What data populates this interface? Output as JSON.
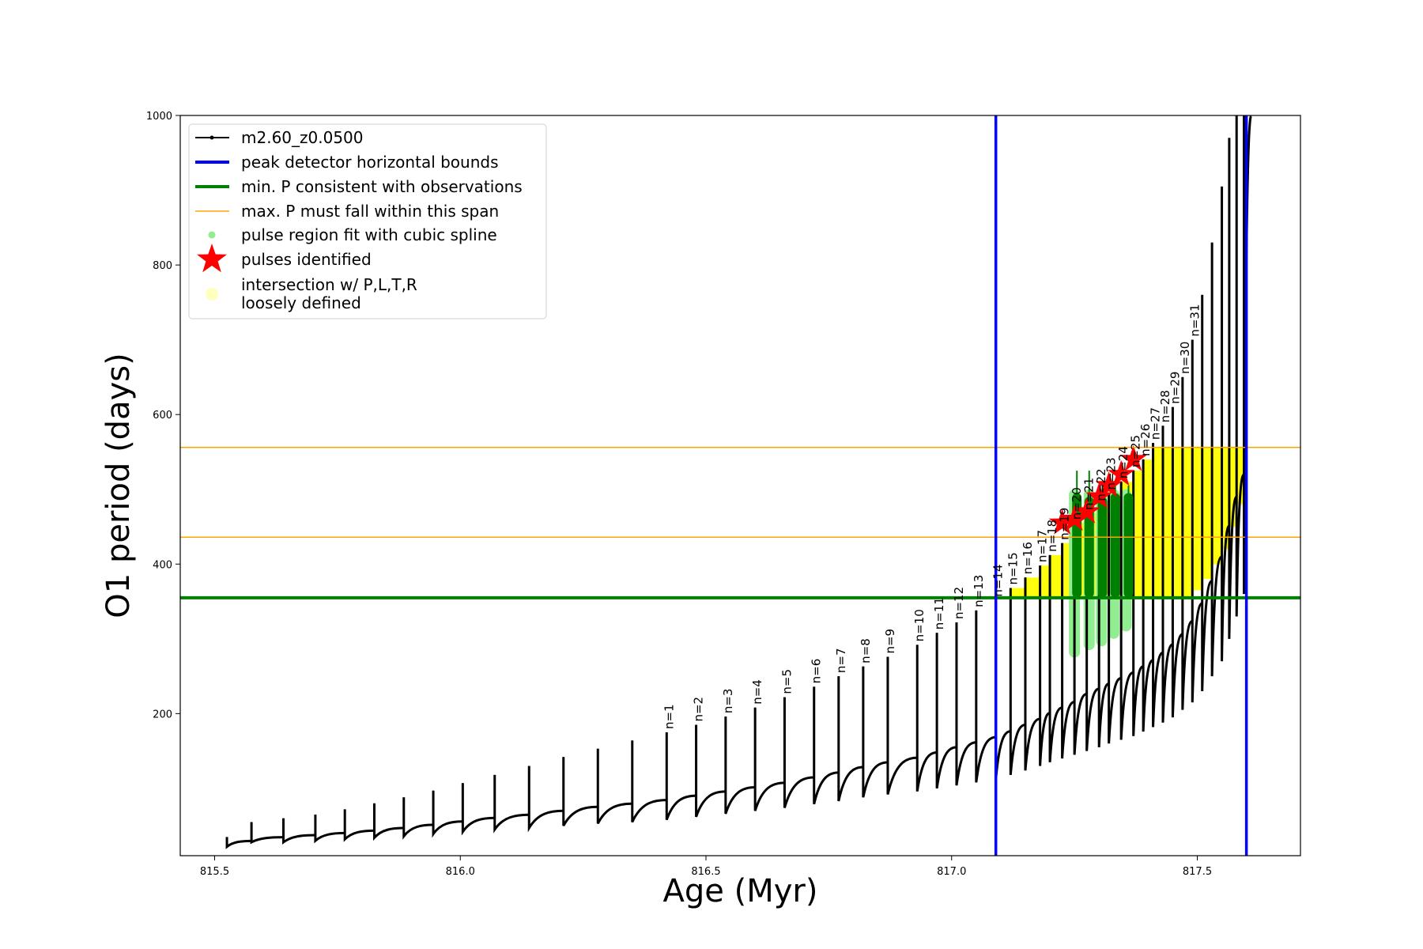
{
  "chart_data": {
    "type": "line",
    "xlabel": "Age (Myr)",
    "ylabel": "O1 period (days)",
    "xlim": [
      815.43,
      817.71
    ],
    "ylim": [
      10,
      1000
    ],
    "xticks": [
      815.5,
      816.0,
      816.5,
      817.0,
      817.5
    ],
    "xtick_labels": [
      "815.5",
      "816.0",
      "816.5",
      "817.0",
      "817.5"
    ],
    "yticks": [
      200,
      400,
      600,
      800,
      1000
    ],
    "ytick_labels": [
      "200",
      "400",
      "600",
      "800",
      "1000"
    ],
    "grid": false,
    "legend_position": "top-left",
    "legend": [
      {
        "label": "m2.60_z0.0500",
        "color": "#000000",
        "marker": "line-dot"
      },
      {
        "label": "peak detector horizontal bounds",
        "color": "#0000ff",
        "marker": "line"
      },
      {
        "label": "min. P consistent with observations",
        "color": "#008000",
        "marker": "line"
      },
      {
        "label": "max. P must fall within this span",
        "color": "#ffa500",
        "marker": "line"
      },
      {
        "label": "pulse region fit with cubic spline",
        "color": "#90ee90",
        "marker": "dot"
      },
      {
        "label": "pulses identified",
        "color": "#ff0000",
        "marker": "star"
      },
      {
        "label": "intersection w/ P,L,T,R",
        "label2": "loosely defined",
        "color": "#ffffc0",
        "marker": "circle"
      }
    ],
    "reference_lines": {
      "vertical_blue": [
        817.09,
        817.6
      ],
      "horizontal_green": 355,
      "horizontal_orange": [
        436,
        556
      ]
    },
    "pulse_series": {
      "name": "m2.60_z0.0500",
      "pulse_labels": [
        "n=1",
        "n=2",
        "n=3",
        "n=4",
        "n=5",
        "n=6",
        "n=7",
        "n=8",
        "n=9",
        "n=10",
        "n=11",
        "n=12",
        "n=13",
        "n=14",
        "n=15",
        "n=16",
        "n=17",
        "n=18",
        "n=19",
        "n=20",
        "n=21",
        "n=22",
        "n=23",
        "n=24",
        "n=25",
        "n=26",
        "n=27",
        "n=28",
        "n=29",
        "n=30",
        "n=31"
      ],
      "pulses": [
        [
          815.525,
          22,
          35
        ],
        [
          815.575,
          28,
          55
        ],
        [
          815.64,
          28,
          60
        ],
        [
          815.705,
          30,
          65
        ],
        [
          815.765,
          32,
          72
        ],
        [
          815.825,
          34,
          80
        ],
        [
          815.885,
          36,
          88
        ],
        [
          815.945,
          39,
          97
        ],
        [
          816.005,
          42,
          107
        ],
        [
          816.07,
          45,
          118
        ],
        [
          816.14,
          47,
          130
        ],
        [
          816.21,
          50,
          142
        ],
        [
          816.28,
          53,
          153
        ],
        [
          816.35,
          55,
          164
        ],
        [
          816.42,
          58,
          175
        ],
        [
          816.48,
          62,
          185
        ],
        [
          816.54,
          66,
          196
        ],
        [
          816.6,
          70,
          208
        ],
        [
          816.66,
          74,
          222
        ],
        [
          816.72,
          79,
          236
        ],
        [
          816.77,
          83,
          250
        ],
        [
          816.82,
          88,
          263
        ],
        [
          816.87,
          92,
          276
        ],
        [
          816.93,
          96,
          292
        ],
        [
          816.97,
          100,
          308
        ],
        [
          817.01,
          104,
          322
        ],
        [
          817.05,
          108,
          338
        ],
        [
          817.09,
          112,
          352
        ],
        [
          817.12,
          118,
          368
        ],
        [
          817.15,
          124,
          382
        ],
        [
          817.18,
          130,
          398
        ],
        [
          817.2,
          135,
          412
        ],
        [
          817.225,
          140,
          428
        ],
        [
          817.25,
          145,
          455
        ],
        [
          817.275,
          150,
          468
        ],
        [
          817.3,
          155,
          480
        ],
        [
          817.32,
          160,
          495
        ],
        [
          817.345,
          165,
          510
        ],
        [
          817.37,
          170,
          525
        ],
        [
          817.39,
          176,
          540
        ],
        [
          817.41,
          182,
          562
        ],
        [
          817.43,
          188,
          585
        ],
        [
          817.45,
          195,
          610
        ],
        [
          817.47,
          205,
          650
        ],
        [
          817.49,
          215,
          700
        ],
        [
          817.51,
          230,
          760
        ],
        [
          817.53,
          250,
          830
        ],
        [
          817.55,
          270,
          905
        ],
        [
          817.565,
          300,
          970
        ],
        [
          817.58,
          330,
          1000
        ],
        [
          817.595,
          360,
          1000
        ]
      ]
    },
    "spline_regions": [
      [
        817.25,
        275,
        500
      ],
      [
        817.28,
        285,
        500
      ],
      [
        817.305,
        290,
        500
      ],
      [
        817.33,
        300,
        500
      ],
      [
        817.355,
        310,
        500
      ]
    ],
    "green_bars": [
      [
        817.255,
        355,
        495,
        525
      ],
      [
        817.28,
        355,
        490,
        525
      ],
      [
        817.307,
        355,
        490,
        505
      ],
      [
        817.333,
        355,
        495,
        505
      ],
      [
        817.36,
        355,
        495,
        505
      ]
    ],
    "star_points": [
      [
        817.225,
        455
      ],
      [
        817.25,
        460
      ],
      [
        817.275,
        470
      ],
      [
        817.3,
        490
      ],
      [
        817.32,
        505
      ],
      [
        817.345,
        520
      ],
      [
        817.37,
        540
      ]
    ],
    "yellow_region": {
      "start": 817.09,
      "end": 817.6
    }
  }
}
